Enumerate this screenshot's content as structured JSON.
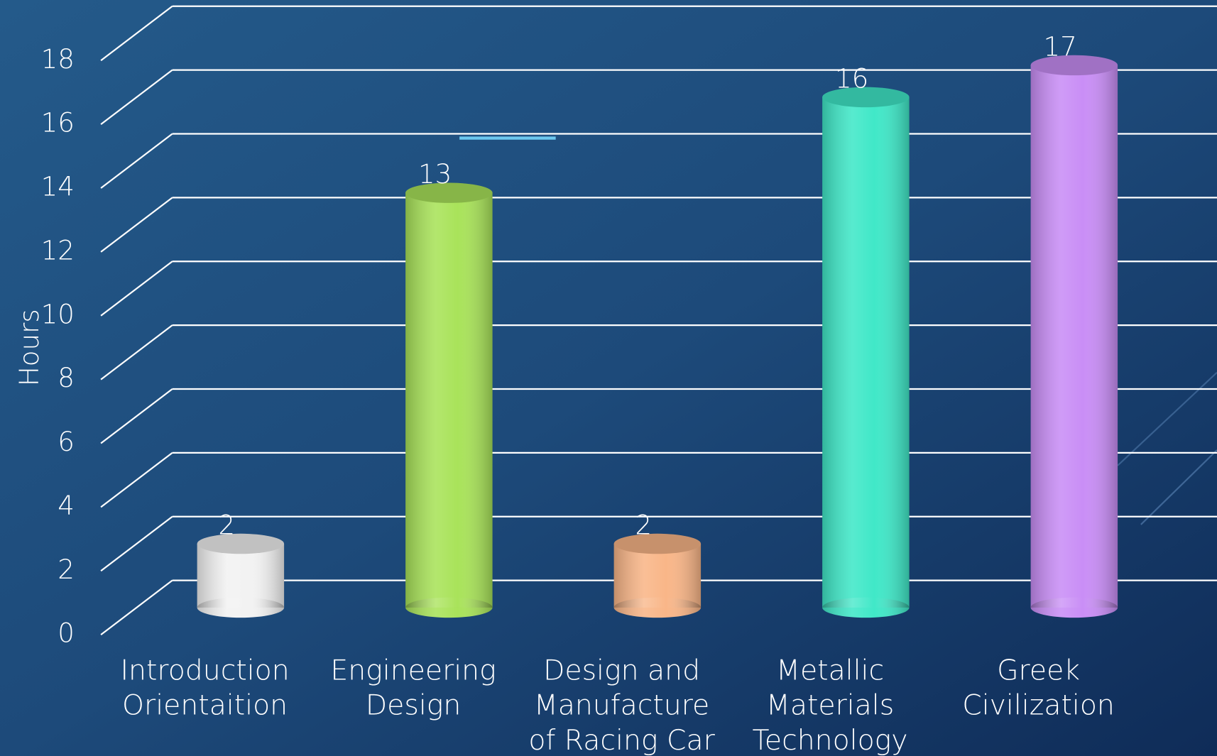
{
  "chart_data": {
    "type": "bar3d",
    "y_label": "Hours",
    "categories": [
      [
        "Introduction",
        "Orientaition"
      ],
      [
        "Engineering",
        "Design"
      ],
      [
        "Design and",
        "Manufacture",
        "of Racing Car"
      ],
      [
        "Metallic",
        "Materials",
        "Technology"
      ],
      [
        "Greek",
        "Civilization"
      ]
    ],
    "values": [
      2,
      13,
      2,
      16,
      17
    ],
    "colors": [
      "#f2f2f2",
      "#a9e35a",
      "#f9b688",
      "#40e8c8",
      "#c98ef6"
    ],
    "ylim": [
      0,
      18
    ],
    "yticks": [
      0,
      2,
      4,
      6,
      8,
      10,
      12,
      14,
      16,
      18
    ],
    "grid": true
  }
}
